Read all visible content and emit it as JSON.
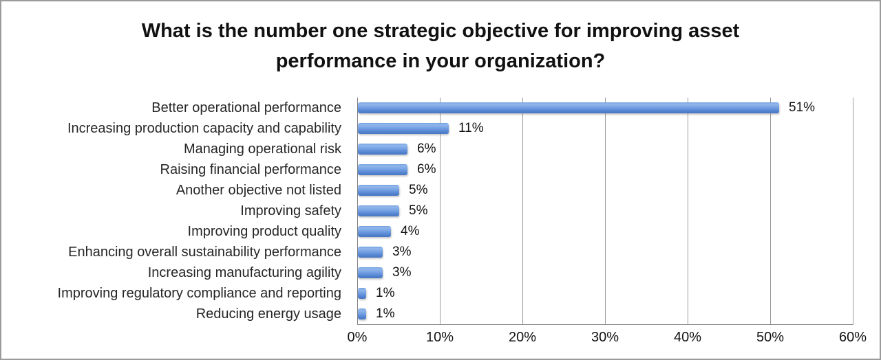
{
  "chart": {
    "title_lines": [
      "What is the number one strategic objective for improving asset",
      "performance in your organization?"
    ]
  },
  "chart_data": {
    "type": "bar",
    "orientation": "horizontal",
    "title": "What is the number one strategic objective for improving asset performance in your organization?",
    "categories": [
      "Better operational performance",
      "Increasing production capacity and capability",
      "Managing operational risk",
      "Raising financial performance",
      "Another objective not listed",
      "Improving safety",
      "Improving product quality",
      "Enhancing overall sustainability performance",
      "Increasing manufacturing agility",
      "Improving regulatory compliance and reporting",
      "Reducing energy usage"
    ],
    "values": [
      51,
      11,
      6,
      6,
      5,
      5,
      4,
      3,
      3,
      1,
      1
    ],
    "value_labels": [
      "51%",
      "11%",
      "6%",
      "6%",
      "5%",
      "5%",
      "4%",
      "3%",
      "3%",
      "1%",
      "1%"
    ],
    "xlabel": "",
    "ylabel": "",
    "xlim": [
      0,
      60
    ],
    "x_ticks": [
      "0%",
      "10%",
      "20%",
      "30%",
      "40%",
      "50%",
      "60%"
    ],
    "grid": "vertical-only",
    "legend": "none",
    "colors": {
      "bar_top": "#92b7ec",
      "bar_mid": "#6c9ade",
      "bar_bottom": "#4a77c2",
      "gridline": "#9a9a9a",
      "axis": "#7f7f7f",
      "text": "#111111",
      "background": "#ffffff",
      "frame_border": "#9b9b9b"
    }
  }
}
